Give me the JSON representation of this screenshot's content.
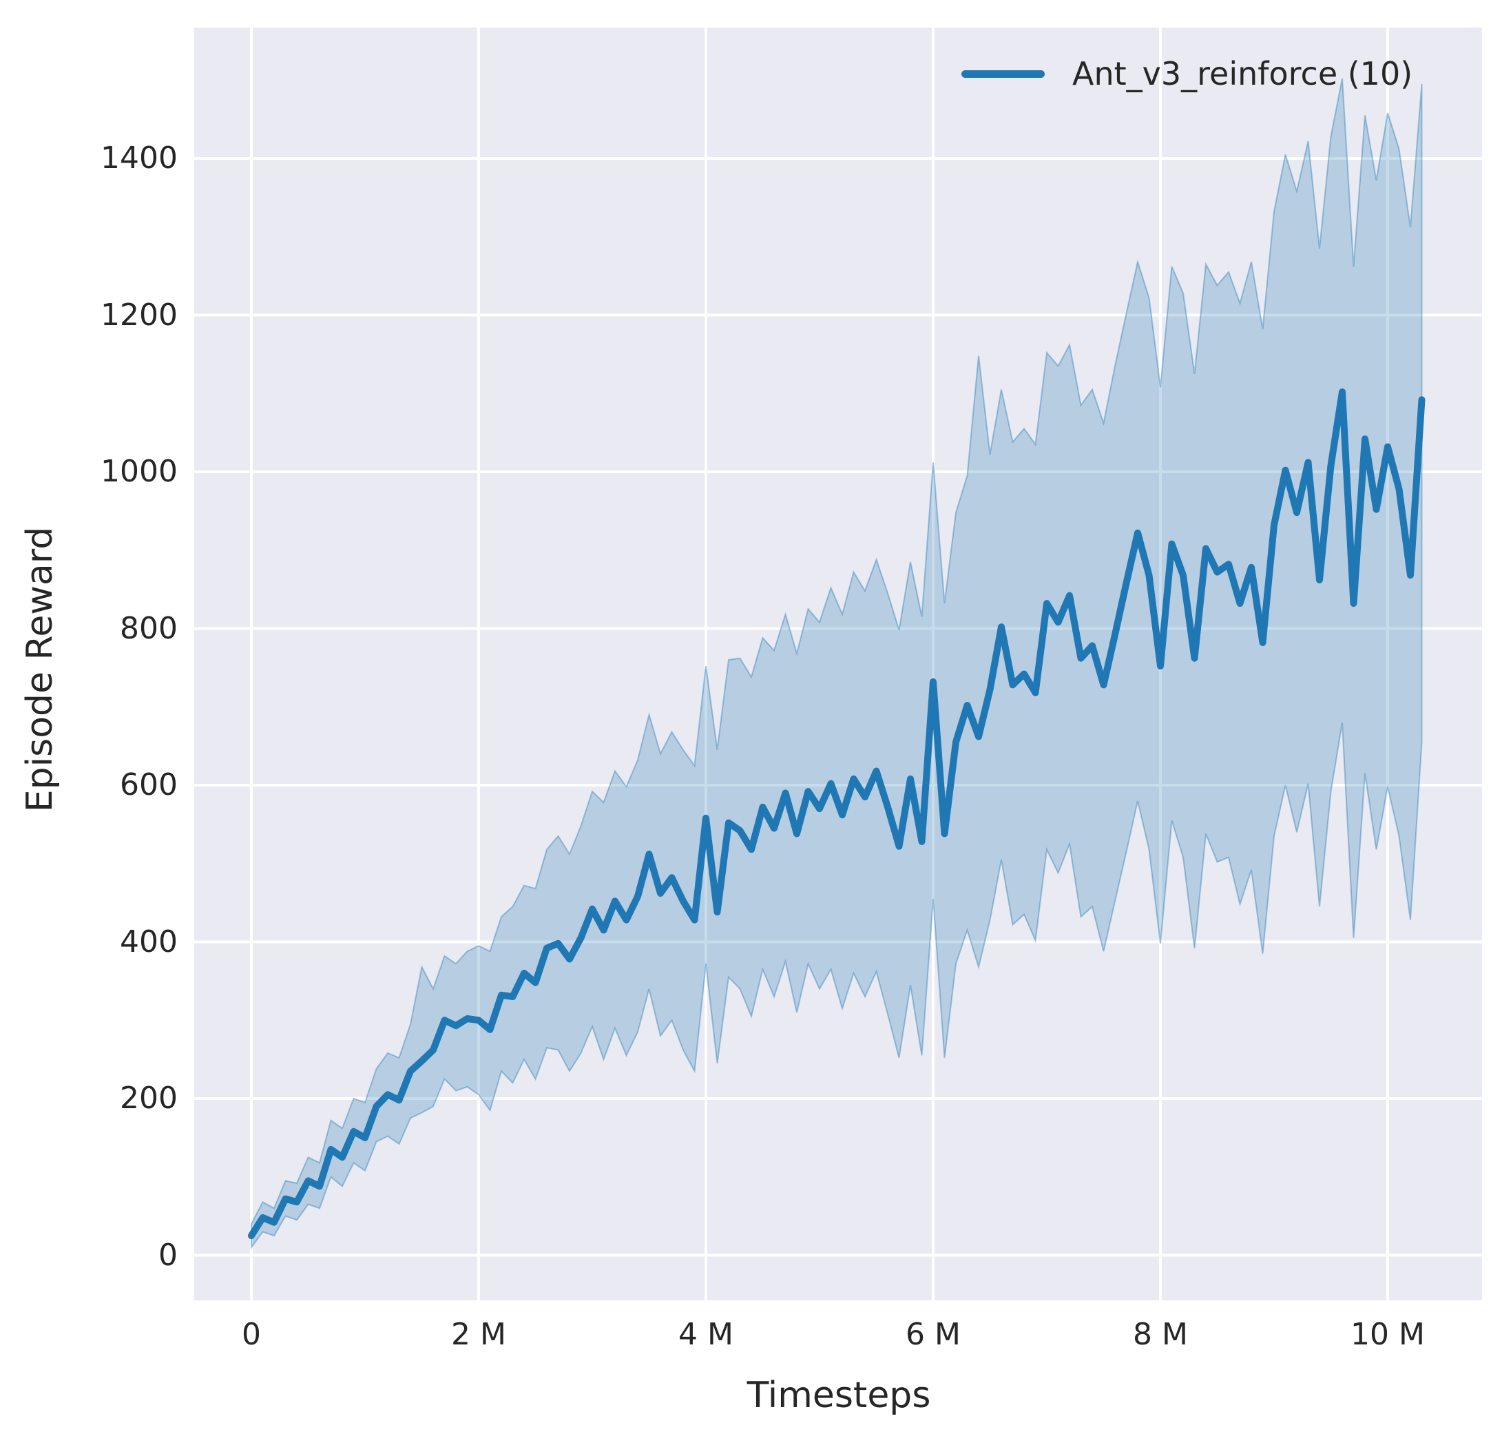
{
  "figure": {
    "xlabel": "Timesteps",
    "ylabel": "Episode Reward",
    "legend_label": "Ant_v3_reinforce (10)",
    "x_ticks": [
      {
        "v": 0,
        "label": "0"
      },
      {
        "v": 2,
        "label": "2 M"
      },
      {
        "v": 4,
        "label": "4 M"
      },
      {
        "v": 6,
        "label": "6 M"
      },
      {
        "v": 8,
        "label": "8 M"
      },
      {
        "v": 10,
        "label": "10 M"
      }
    ],
    "y_ticks": [
      {
        "v": 0,
        "label": "0"
      },
      {
        "v": 200,
        "label": "200"
      },
      {
        "v": 400,
        "label": "400"
      },
      {
        "v": 600,
        "label": "600"
      },
      {
        "v": 800,
        "label": "800"
      },
      {
        "v": 1000,
        "label": "1000"
      },
      {
        "v": 1200,
        "label": "1200"
      },
      {
        "v": 1400,
        "label": "1400"
      }
    ],
    "colors": {
      "line": "#1f77b4",
      "band_fill": "rgba(31,119,180,0.25)",
      "band_edge": "rgba(31,119,180,0.40)",
      "axes_bg": "#eaeaf2",
      "grid": "#ffffff",
      "text": "#262626"
    }
  },
  "chart_data": {
    "type": "line",
    "title": "",
    "xlabel": "Timesteps",
    "ylabel": "Episode Reward",
    "legend": [
      "Ant_v3_reinforce (10)"
    ],
    "legend_position": "upper right",
    "grid": true,
    "x_unit": "timesteps_millions",
    "xlim": [
      -0.52,
      10.85
    ],
    "ylim": [
      -57,
      1567
    ],
    "x": [
      0,
      0.1,
      0.2,
      0.3,
      0.4,
      0.5,
      0.6,
      0.7,
      0.8,
      0.9,
      1,
      1.1,
      1.2,
      1.3,
      1.4,
      1.5,
      1.6,
      1.7,
      1.8,
      1.9,
      2,
      2.1,
      2.2,
      2.3,
      2.4,
      2.5,
      2.6,
      2.7,
      2.8,
      2.9,
      3,
      3.1,
      3.2,
      3.3,
      3.4,
      3.5,
      3.6,
      3.7,
      3.8,
      3.9,
      4,
      4.1,
      4.2,
      4.3,
      4.4,
      4.5,
      4.6,
      4.7,
      4.8,
      4.9,
      5,
      5.1,
      5.2,
      5.3,
      5.4,
      5.5,
      5.6,
      5.7,
      5.8,
      5.9,
      6,
      6.1,
      6.2,
      6.3,
      6.4,
      6.5,
      6.6,
      6.7,
      6.8,
      6.9,
      7,
      7.1,
      7.2,
      7.3,
      7.4,
      7.5,
      7.6,
      7.7,
      7.8,
      7.9,
      8,
      8.1,
      8.2,
      8.3,
      8.4,
      8.5,
      8.6,
      8.7,
      8.8,
      8.9,
      9,
      9.1,
      9.2,
      9.3,
      9.4,
      9.5,
      9.6,
      9.7,
      9.8,
      9.9,
      10,
      10.1,
      10.2,
      10.3
    ],
    "series": [
      {
        "name": "Ant_v3_reinforce (10)",
        "mean": [
          25,
          48,
          42,
          72,
          68,
          95,
          88,
          135,
          125,
          158,
          150,
          190,
          205,
          198,
          235,
          248,
          262,
          300,
          293,
          302,
          300,
          288,
          332,
          330,
          360,
          348,
          392,
          398,
          378,
          405,
          442,
          415,
          452,
          428,
          458,
          512,
          462,
          482,
          452,
          428,
          558,
          438,
          552,
          542,
          518,
          572,
          545,
          590,
          538,
          592,
          570,
          602,
          562,
          608,
          585,
          618,
          572,
          522,
          608,
          528,
          732,
          538,
          655,
          702,
          662,
          722,
          802,
          728,
          742,
          718,
          832,
          808,
          842,
          762,
          778,
          728,
          792,
          858,
          922,
          868,
          752,
          908,
          868,
          762,
          902,
          872,
          882,
          832,
          878,
          782,
          932,
          1002,
          948,
          1012,
          862,
          1008,
          1102,
          832,
          1042,
          952,
          1032,
          978,
          868,
          1092
        ],
        "band_low": [
          10,
          30,
          25,
          50,
          45,
          65,
          60,
          100,
          88,
          118,
          108,
          145,
          152,
          142,
          175,
          182,
          190,
          225,
          210,
          215,
          205,
          185,
          235,
          220,
          250,
          225,
          265,
          262,
          235,
          258,
          292,
          250,
          290,
          255,
          285,
          340,
          280,
          300,
          262,
          235,
          372,
          245,
          355,
          340,
          305,
          365,
          330,
          375,
          310,
          372,
          340,
          365,
          315,
          360,
          330,
          362,
          308,
          252,
          345,
          255,
          455,
          252,
          372,
          415,
          368,
          428,
          505,
          422,
          435,
          402,
          518,
          488,
          525,
          432,
          445,
          388,
          452,
          515,
          580,
          518,
          398,
          555,
          508,
          392,
          538,
          502,
          508,
          448,
          492,
          385,
          535,
          600,
          540,
          602,
          445,
          592,
          680,
          405,
          615,
          518,
          598,
          535,
          428,
          655
        ],
        "band_high": [
          40,
          68,
          60,
          95,
          92,
          125,
          118,
          172,
          162,
          200,
          195,
          238,
          258,
          252,
          295,
          368,
          340,
          382,
          372,
          388,
          395,
          388,
          432,
          445,
          472,
          468,
          518,
          535,
          512,
          548,
          592,
          578,
          618,
          598,
          632,
          690,
          640,
          668,
          645,
          625,
          752,
          645,
          760,
          762,
          738,
          788,
          772,
          818,
          768,
          825,
          808,
          852,
          818,
          872,
          848,
          888,
          845,
          798,
          885,
          815,
          1012,
          832,
          948,
          995,
          1148,
          1022,
          1105,
          1038,
          1055,
          1035,
          1152,
          1135,
          1162,
          1085,
          1105,
          1062,
          1135,
          1202,
          1268,
          1222,
          1108,
          1262,
          1228,
          1125,
          1265,
          1238,
          1255,
          1215,
          1268,
          1182,
          1332,
          1405,
          1358,
          1422,
          1285,
          1428,
          1502,
          1262,
          1455,
          1372,
          1458,
          1412,
          1312,
          1495
        ]
      }
    ]
  }
}
